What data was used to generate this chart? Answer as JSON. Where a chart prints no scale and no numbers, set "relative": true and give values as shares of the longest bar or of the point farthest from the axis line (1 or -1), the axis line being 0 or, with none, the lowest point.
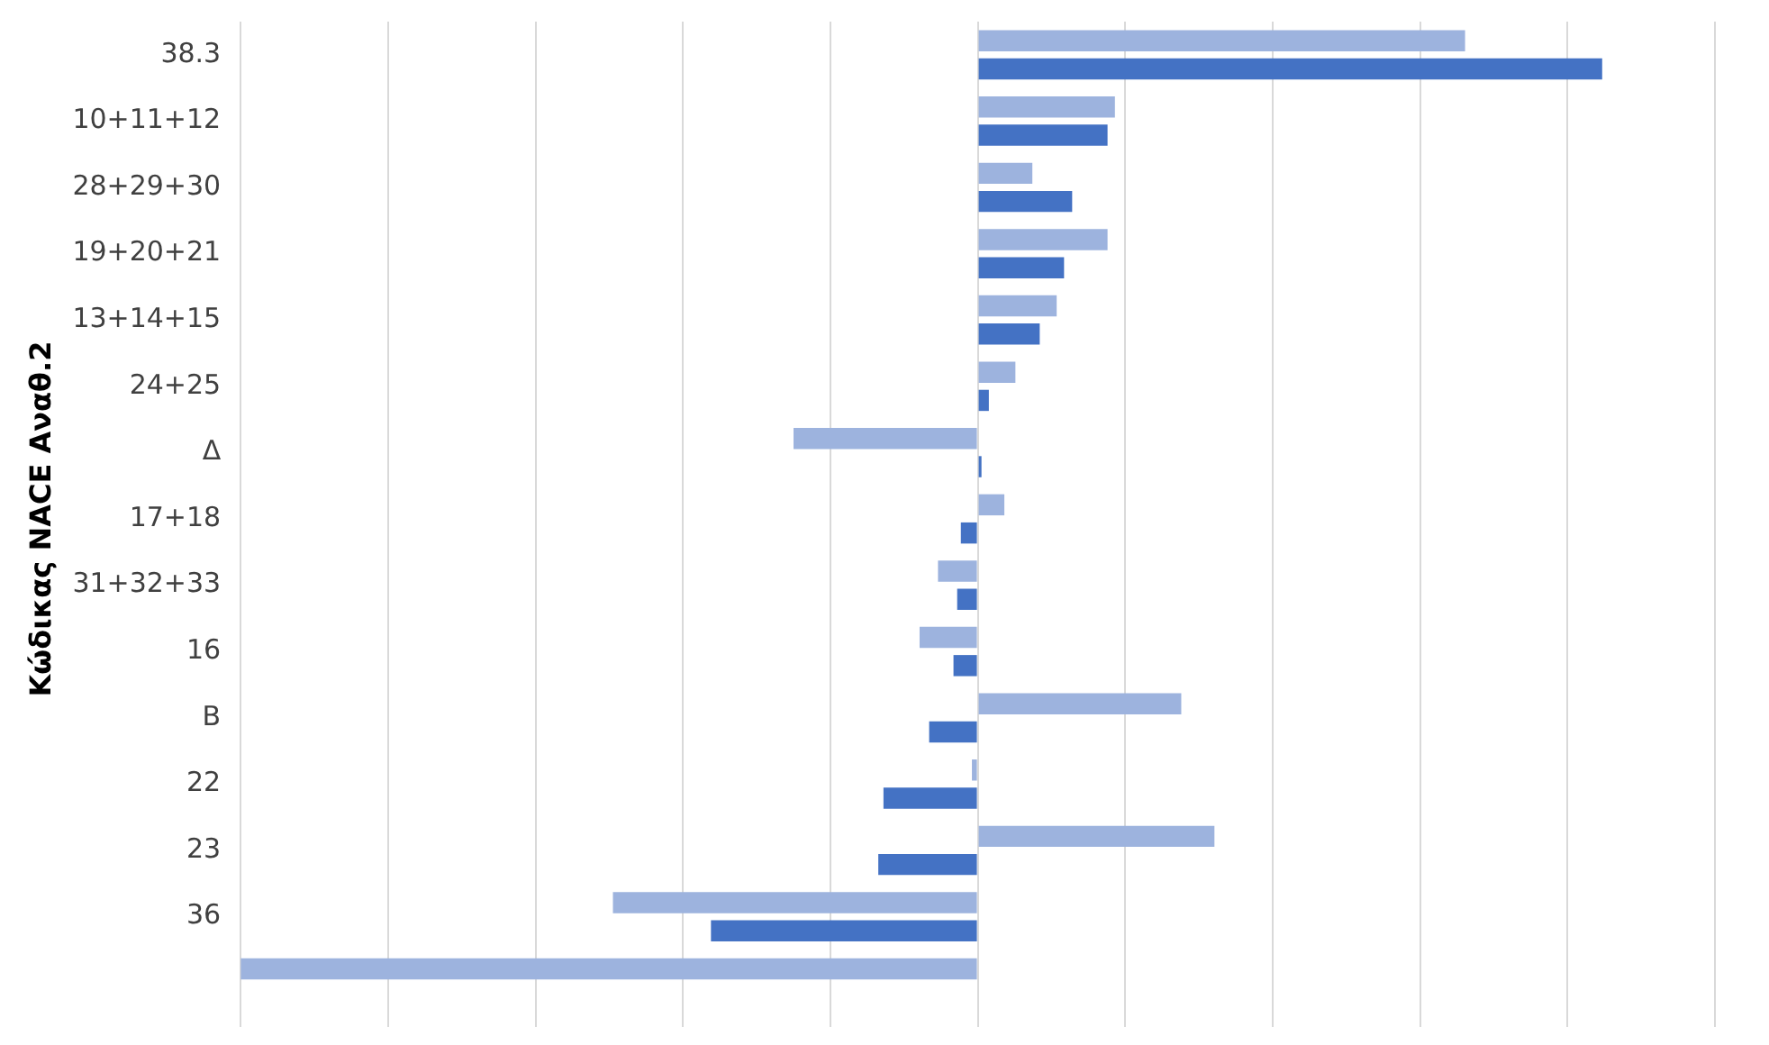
{
  "chart_data": {
    "type": "bar",
    "orientation": "horizontal",
    "relative": true,
    "ylabel": "Κώδικας NACE Αναθ.2",
    "grid": "x",
    "categories": [
      "38.3",
      "10+11+12",
      "28+29+30",
      "19+20+21",
      "13+14+15",
      "24+25",
      "Δ",
      "17+18",
      "31+32+33",
      "16",
      "B",
      "22",
      "23",
      "36",
      null
    ],
    "series": [
      {
        "color": "#9db3de",
        "values": [
          0.661,
          0.186,
          0.074,
          0.176,
          0.107,
          0.051,
          -0.25,
          0.036,
          -0.054,
          -0.079,
          0.276,
          -0.008,
          0.321,
          -0.495,
          -1
        ]
      },
      {
        "color": "#4472c4",
        "values": [
          0.847,
          0.176,
          0.128,
          0.117,
          0.084,
          0.015,
          0.005,
          -0.023,
          -0.028,
          -0.033,
          -0.066,
          -0.128,
          -0.135,
          -0.362,
          null
        ]
      }
    ]
  }
}
